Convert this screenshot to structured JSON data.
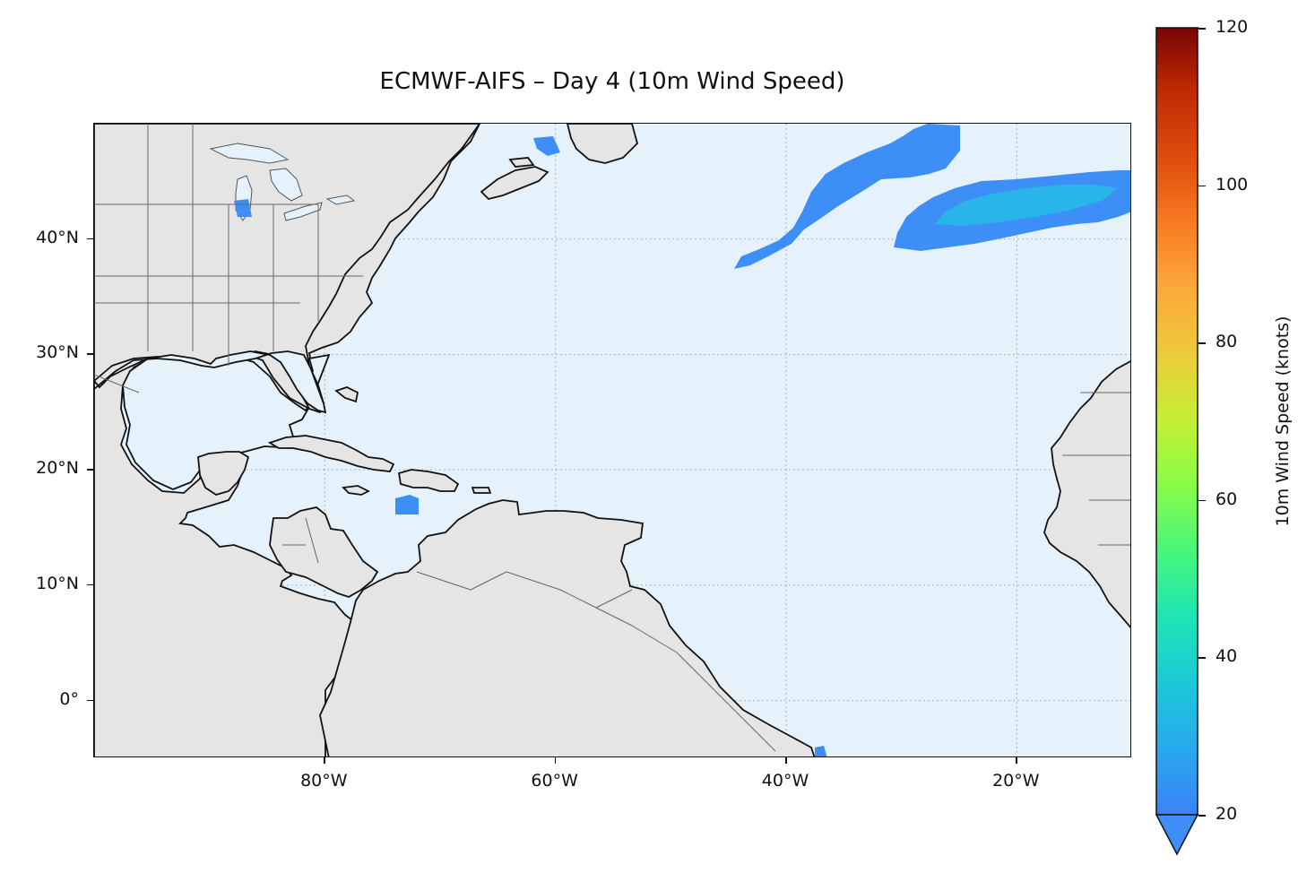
{
  "title": "ECMWF-AIFS – Day 4 (10m Wind Speed)",
  "map": {
    "extent": {
      "lon_min": -100,
      "lon_max": -10,
      "lat_min": -5,
      "lat_max": 50
    },
    "colors": {
      "ocean": "#e6f2fb",
      "land": "#e5e5e5",
      "coastline": "#111111",
      "borders": "#666666",
      "gridlines": "#b0b0b0",
      "wind_low": "#3d8ff7",
      "wind_mid": "#2ab5ea"
    },
    "lat_ticks": [
      {
        "value": 40,
        "label": "40°N"
      },
      {
        "value": 30,
        "label": "30°N"
      },
      {
        "value": 20,
        "label": "20°N"
      },
      {
        "value": 10,
        "label": "10°N"
      },
      {
        "value": 0,
        "label": "0°"
      }
    ],
    "lon_ticks": [
      {
        "value": -80,
        "label": "80°W"
      },
      {
        "value": -60,
        "label": "60°W"
      },
      {
        "value": -40,
        "label": "40°W"
      },
      {
        "value": -20,
        "label": "20°W"
      }
    ],
    "gridlines": "dotted",
    "wind_regions": [
      {
        "name": "north-atlantic-band-west",
        "level": "20-25 knots"
      },
      {
        "name": "north-atlantic-band-east",
        "level": "20-30 knots"
      },
      {
        "name": "hispaniola-south",
        "level": "20-22 knots"
      },
      {
        "name": "lake-michigan",
        "level": "20-22 knots"
      },
      {
        "name": "gulf-of-st-lawrence",
        "level": "20-22 knots"
      }
    ]
  },
  "colorbar": {
    "label": "10m Wind Speed (knots)",
    "min": 20,
    "max": 120,
    "extend": "min",
    "ticks": [
      {
        "value": 120,
        "label": "120"
      },
      {
        "value": 100,
        "label": "100"
      },
      {
        "value": 80,
        "label": "80"
      },
      {
        "value": 60,
        "label": "60"
      },
      {
        "value": 40,
        "label": "40"
      },
      {
        "value": 20,
        "label": "20"
      }
    ],
    "colormap": "turbo"
  }
}
